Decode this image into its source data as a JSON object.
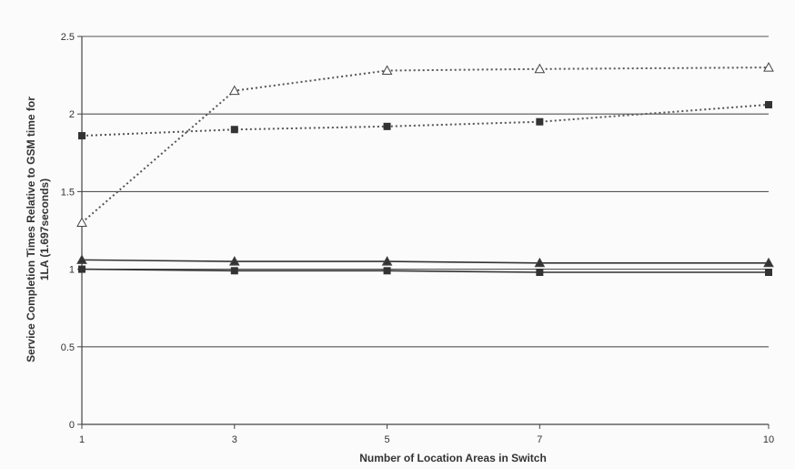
{
  "chart_data": {
    "type": "line",
    "title": "",
    "xlabel": "Number of Location Areas in Switch",
    "ylabel_lines": [
      "Service Completion Times Relative to GSM time for",
      "1LA (1.697seconds)"
    ],
    "x": [
      1,
      3,
      5,
      7,
      10
    ],
    "x_tick_labels": [
      "1",
      "3",
      "5",
      "7",
      "10"
    ],
    "ylim": [
      0,
      2.5
    ],
    "y_ticks": [
      0,
      0.5,
      1,
      1.5,
      2,
      2.5
    ],
    "y_tick_labels": [
      "0",
      "0.5",
      "1",
      "1.5",
      "2",
      "2.5"
    ],
    "grid": "horizontal",
    "series": [
      {
        "marker": "triangle-open",
        "line": "dotted",
        "values": [
          1.3,
          2.15,
          2.28,
          2.29,
          2.3
        ]
      },
      {
        "marker": "square",
        "line": "dotted",
        "values": [
          1.86,
          1.9,
          1.92,
          1.95,
          2.06
        ]
      },
      {
        "marker": "triangle-filled",
        "line": "solid",
        "values": [
          1.06,
          1.05,
          1.05,
          1.04,
          1.04
        ]
      },
      {
        "marker": "square-filled",
        "line": "solid",
        "values": [
          1.0,
          0.99,
          0.99,
          0.98,
          0.98
        ]
      }
    ]
  }
}
